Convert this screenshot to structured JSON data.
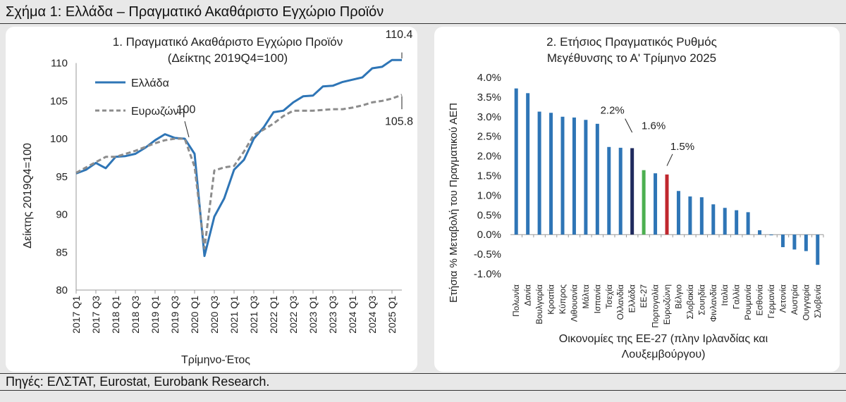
{
  "figure": {
    "title": "Σχήμα 1: Ελλάδα – Πραγματικό Ακαθάριστο Εγχώριο Προϊόν",
    "source": "Πηγές: ΕΛΣΤΑΤ, Eurostat, Eurobank Research."
  },
  "colors": {
    "greece": "#2E75B6",
    "eurozone": "#8C8C8C",
    "bar": "#2E75B6",
    "bar_greece": "#1F2A5E",
    "bar_eu27": "#4CAF50",
    "bar_eurozone": "#C0272D"
  },
  "chart_data": [
    {
      "type": "line",
      "title": "1. Πραγματικό Ακαθάριστο Εγχώριο Προϊόν",
      "subtitle": "(Δείκτης 2019Q4=100)",
      "xlabel": "Τρίμηνο-Έτος",
      "ylabel": "Δείκτης 2019Q4=100",
      "ylim": [
        80,
        112
      ],
      "yticks": [
        "80",
        "85",
        "90",
        "95",
        "100",
        "105",
        "110"
      ],
      "xticks": [
        "2017 Q1",
        "2017 Q3",
        "2018 Q1",
        "2018 Q3",
        "2019 Q1",
        "2019 Q3",
        "2020 Q1",
        "2020 Q3",
        "2021 Q1",
        "2021 Q3",
        "2022 Q1",
        "2022 Q3",
        "2023 Q1",
        "2023 Q3",
        "2024 Q1",
        "2024 Q3",
        "2025 Q1"
      ],
      "legend": "top-left",
      "annotations": [
        "100",
        "110.4",
        "105.8"
      ],
      "series": [
        {
          "name": "Ελλάδα",
          "values": [
            95.4,
            95.9,
            96.8,
            96.1,
            97.6,
            97.7,
            98.0,
            98.8,
            99.8,
            100.6,
            100.1,
            100.0,
            98.0,
            84.5,
            89.7,
            92.1,
            95.9,
            97.2,
            100.0,
            101.5,
            103.5,
            103.7,
            104.8,
            105.6,
            105.7,
            106.9,
            107.0,
            107.5,
            107.8,
            108.1,
            109.3,
            109.5,
            110.4,
            110.4
          ]
        },
        {
          "name": "Ευρωζώνη",
          "values": [
            95.5,
            96.2,
            96.9,
            97.6,
            97.6,
            98.0,
            98.4,
            98.9,
            99.4,
            99.8,
            100.0,
            100.0,
            96.3,
            85.5,
            95.8,
            96.2,
            96.4,
            98.3,
            100.5,
            101.2,
            102.0,
            103.0,
            103.7,
            103.7,
            103.7,
            103.8,
            103.9,
            103.9,
            104.1,
            104.4,
            104.8,
            105.0,
            105.3,
            105.8
          ]
        }
      ]
    },
    {
      "type": "bar",
      "title": "2. Ετήσιος Πραγματικός Ρυθμός",
      "subtitle": "Μεγέθυνσης το Α' Τρίμηνο 2025",
      "xlabel": "Οικονομίες της ΕΕ-27 (πλην Ιρλανδίας και",
      "xlabel2": "Λουξεμβούργου)",
      "ylabel": "Ετήσια % Μεταβολή του Πραγματικού ΑΕΠ",
      "ylim": [
        -1.0,
        4.0
      ],
      "yticks": [
        "-1.0%",
        "-0.5%",
        "0.0%",
        "0.5%",
        "1.0%",
        "1.5%",
        "2.0%",
        "2.5%",
        "3.0%",
        "3.5%",
        "4.0%"
      ],
      "annotations": [
        "2.2%",
        "1.6%",
        "1.5%"
      ],
      "categories": [
        "Πολωνία",
        "Δανία",
        "Βουλγαρία",
        "Κροατία",
        "Κύπρος",
        "Λιθουανία",
        "Μάλτα",
        "Ισπανία",
        "Τσεχία",
        "Ολλανδία",
        "Ελλάδα",
        "ΕΕ-27",
        "Πορτογαλία",
        "Ευρωζώνη",
        "Βέλγιο",
        "Σλοβακία",
        "Σουηδία",
        "Φινλανδία",
        "Ιταλία",
        "Γαλλία",
        "Ρουμανία",
        "Εσθονία",
        "Γερμανία",
        "Λετονία",
        "Αυστρία",
        "Ουγγαρία",
        "Σλοβενία"
      ],
      "values": [
        3.72,
        3.6,
        3.13,
        3.1,
        3.0,
        2.98,
        2.92,
        2.82,
        2.23,
        2.21,
        2.2,
        1.64,
        1.56,
        1.53,
        1.11,
        0.97,
        0.95,
        0.77,
        0.68,
        0.62,
        0.57,
        0.11,
        0.0,
        -0.32,
        -0.38,
        -0.42,
        -0.77
      ]
    }
  ]
}
